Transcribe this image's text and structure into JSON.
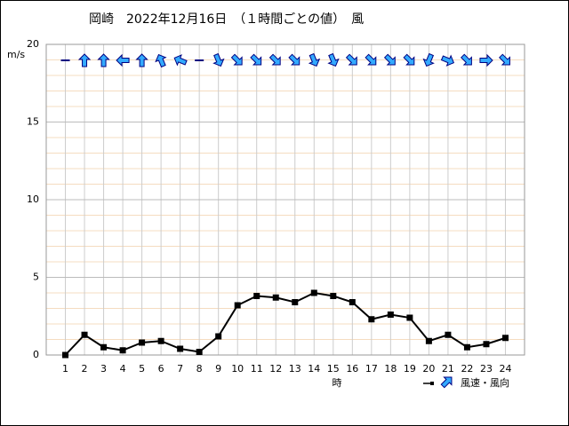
{
  "chart_data": {
    "type": "line",
    "title": "岡崎　2022年12月16日　（１時間ごとの値）　風",
    "y_unit": "m/s",
    "x_label": "時",
    "x": [
      1,
      2,
      3,
      4,
      5,
      6,
      7,
      8,
      9,
      10,
      11,
      12,
      13,
      14,
      15,
      16,
      17,
      18,
      19,
      20,
      21,
      22,
      23,
      24
    ],
    "xlim": [
      0,
      25
    ],
    "xticks": [
      1,
      2,
      3,
      4,
      5,
      6,
      7,
      8,
      9,
      10,
      11,
      12,
      13,
      14,
      15,
      16,
      17,
      18,
      19,
      20,
      21,
      22,
      23,
      24
    ],
    "ylim": [
      0,
      20
    ],
    "yticks": [
      0,
      5,
      10,
      15,
      20
    ],
    "minor_yticks": [
      1,
      2,
      3,
      4,
      6,
      7,
      8,
      9,
      11,
      12,
      13,
      14,
      16,
      17,
      18,
      19
    ],
    "grid": true,
    "series": [
      {
        "name": "風速・風向",
        "color": "#000000",
        "values": [
          0,
          1.3,
          0.5,
          0.3,
          0.8,
          0.9,
          0.4,
          0.2,
          1.2,
          3.2,
          3.8,
          3.7,
          3.4,
          4.0,
          3.8,
          3.4,
          2.3,
          2.6,
          2.4,
          0.9,
          1.3,
          0.5,
          0.7,
          1.1
        ],
        "wind_to_deg": [
          null,
          0,
          0,
          270,
          0,
          337.5,
          292.5,
          null,
          157.5,
          135,
          135,
          135,
          135,
          157.5,
          157.5,
          135,
          135,
          135,
          135,
          202.5,
          112.5,
          135,
          90,
          135
        ],
        "arrow_color": "#33aaff"
      }
    ]
  }
}
